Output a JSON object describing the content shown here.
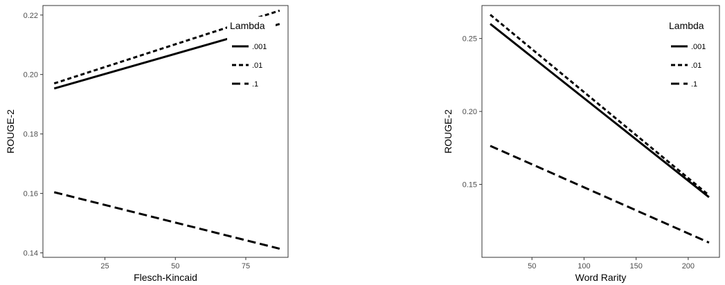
{
  "chart_data": [
    {
      "type": "line",
      "xlabel": "Flesch-Kincaid",
      "ylabel": "ROUGE-2",
      "xlim": [
        3,
        90
      ],
      "ylim": [
        0.1385,
        0.2232
      ],
      "xticks": [
        25,
        50,
        75
      ],
      "xtick_labels": [
        "25",
        "50",
        "75"
      ],
      "yticks": [
        0.14,
        0.16,
        0.18,
        0.2,
        0.22
      ],
      "ytick_labels": [
        "0.14",
        "0.16",
        "0.18",
        "0.20",
        "0.22"
      ],
      "grid": false,
      "legend": {
        "title": "Lambda",
        "position": "top-right",
        "entries": [
          ".001",
          ".01",
          ".1"
        ]
      },
      "series": [
        {
          "name": ".001",
          "linestyle": "solid",
          "x": [
            7,
            87
          ],
          "y": [
            0.1953,
            0.217
          ]
        },
        {
          "name": ".01",
          "linestyle": "dotted",
          "x": [
            7,
            87
          ],
          "y": [
            0.197,
            0.2215
          ]
        },
        {
          "name": ".1",
          "linestyle": "dashed",
          "x": [
            7,
            87
          ],
          "y": [
            0.1604,
            0.1414
          ]
        }
      ]
    },
    {
      "type": "line",
      "xlabel": "Word Rarity",
      "ylabel": "ROUGE-2",
      "xlim": [
        2,
        230
      ],
      "ylim": [
        0.1,
        0.2726
      ],
      "xticks": [
        50,
        100,
        150,
        200
      ],
      "xtick_labels": [
        "50",
        "100",
        "150",
        "200"
      ],
      "yticks": [
        0.15,
        0.2,
        0.25
      ],
      "ytick_labels": [
        "0.15",
        "0.20",
        "0.25"
      ],
      "grid": false,
      "legend": {
        "title": "Lambda",
        "position": "top-right",
        "entries": [
          ".001",
          ".01",
          ".1"
        ]
      },
      "series": [
        {
          "name": ".001",
          "linestyle": "solid",
          "x": [
            10,
            220
          ],
          "y": [
            0.26,
            0.1412
          ]
        },
        {
          "name": ".01",
          "linestyle": "dotted",
          "x": [
            10,
            220
          ],
          "y": [
            0.2663,
            0.1425
          ]
        },
        {
          "name": ".1",
          "linestyle": "dashed",
          "x": [
            10,
            220
          ],
          "y": [
            0.1764,
            0.1101
          ]
        }
      ]
    }
  ]
}
